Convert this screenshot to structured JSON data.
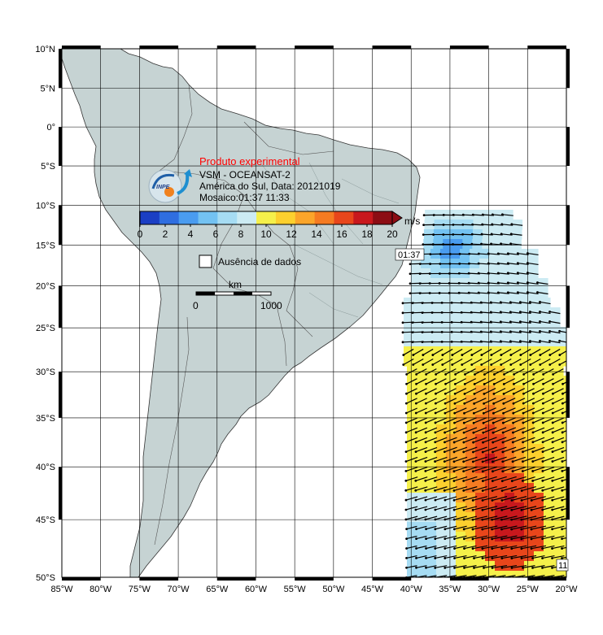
{
  "map": {
    "title": "Produto experimental",
    "product": "VSM - OCEANSAT-2",
    "region_date": "América do Sul, Data: 20121019",
    "mosaic": "Mosaico:01:37 11:33",
    "logo_text": "INPE",
    "lat_labels": [
      "10°N",
      "5°N",
      "0°",
      "5°S",
      "10°S",
      "15°S",
      "20°S",
      "25°S",
      "30°S",
      "35°S",
      "40°S",
      "45°S",
      "50°S"
    ],
    "lon_labels": [
      "85°W",
      "80°W",
      "75°W",
      "70°W",
      "65°W",
      "60°W",
      "55°W",
      "50°W",
      "45°W",
      "40°W",
      "35°W",
      "30°W",
      "25°W",
      "20°W"
    ],
    "extent": {
      "lon": [
        -85,
        -20
      ],
      "lat": [
        -50,
        10
      ]
    },
    "colorbar": {
      "unit": "m/s",
      "ticks": [
        "0",
        "2",
        "4",
        "6",
        "8",
        "10",
        "12",
        "14",
        "16",
        "18",
        "20"
      ],
      "colors": [
        "#1b3fc4",
        "#2f6ee0",
        "#4a9cf0",
        "#73c2f2",
        "#a6dcf3",
        "#ccebf3",
        "#f5f04a",
        "#fcd02e",
        "#fba52a",
        "#f57b22",
        "#e8461b",
        "#c8181d",
        "#8c0d14"
      ]
    },
    "legend_missing": "Ausência de dados",
    "scalebar": {
      "unit": "km",
      "start": "0",
      "end": "1000"
    },
    "pass_labels": [
      "01:37",
      "11"
    ],
    "colors": {
      "land": "#c6d3d3",
      "ocean": "#ffffff",
      "grid": "#000000",
      "title": "#ff0000"
    }
  }
}
